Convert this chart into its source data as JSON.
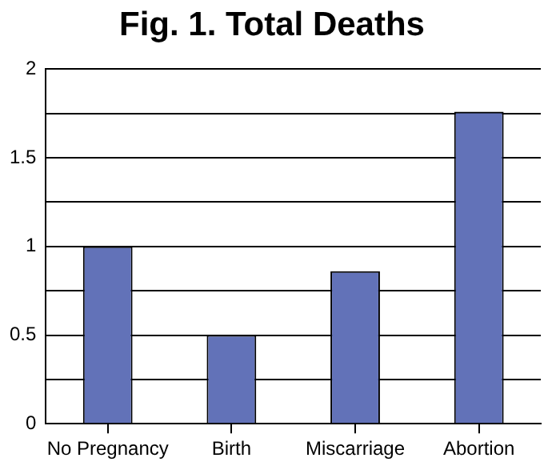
{
  "chart_data": {
    "type": "bar",
    "title": "Fig. 1.  Total Deaths",
    "categories": [
      "No Pregnancy",
      "Birth",
      "Miscarriage",
      "Abortion"
    ],
    "values": [
      1,
      0.5,
      0.86,
      1.76
    ],
    "color": "#6272b8",
    "ylim": [
      0,
      2
    ],
    "yticks": [
      0,
      {
        "value": 0.25,
        "label": null
      },
      0.5,
      {
        "value": 0.75,
        "label": null
      },
      1,
      {
        "value": 1.25,
        "label": null
      },
      1.5,
      {
        "value": 1.75,
        "label": null
      },
      2
    ],
    "grid": "y"
  }
}
